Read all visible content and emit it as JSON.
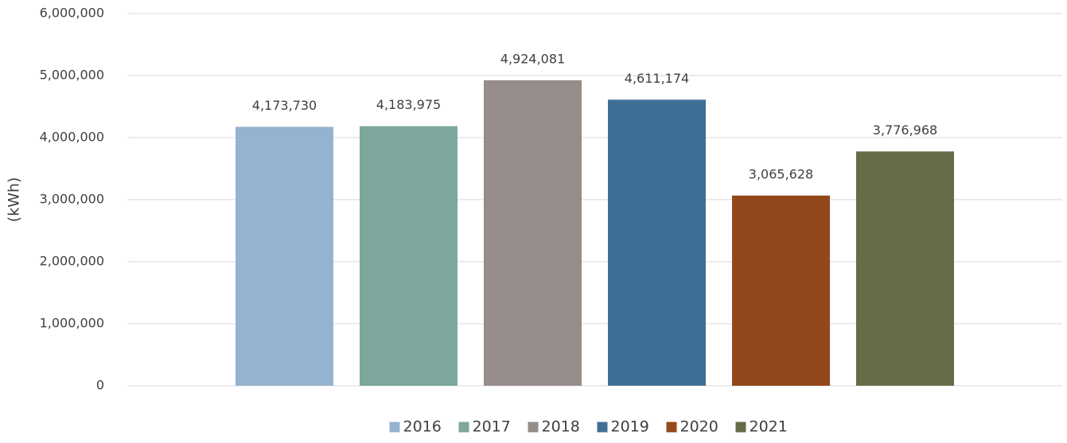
{
  "chart_data": {
    "type": "bar",
    "y_label": "(kWh)",
    "series": [
      {
        "name": "2016",
        "color": "#95b3d0",
        "values": [
          4173730
        ],
        "value_labels": [
          "4,173,730"
        ]
      },
      {
        "name": "2017",
        "color": "#7da79c",
        "values": [
          4183975
        ],
        "value_labels": [
          "4,183,975"
        ]
      },
      {
        "name": "2018",
        "color": "#968c89",
        "values": [
          4924081
        ],
        "value_labels": [
          "4,924,081"
        ]
      },
      {
        "name": "2019",
        "color": "#406f96",
        "values": [
          4611174
        ],
        "value_labels": [
          "4,611,174"
        ]
      },
      {
        "name": "2020",
        "color": "#93481b",
        "values": [
          3065628
        ],
        "value_labels": [
          "3,065,628"
        ]
      },
      {
        "name": "2021",
        "color": "#656c46",
        "values": [
          3776968
        ],
        "value_labels": [
          "3,776,968"
        ]
      }
    ],
    "ylim": [
      0,
      6000000
    ],
    "yticks": [
      0,
      {
        "value": 1000000,
        "label": "1,000,000"
      },
      {
        "value": 2000000,
        "label": "2,000,000"
      },
      {
        "value": 3000000,
        "label": "3,000,000"
      },
      {
        "value": 4000000,
        "label": "4,000,000"
      },
      {
        "value": 5000000,
        "label": "5,000,000"
      },
      {
        "value": 6000000,
        "label": "6,000,000"
      }
    ],
    "grid": true,
    "legend": "bottom"
  }
}
